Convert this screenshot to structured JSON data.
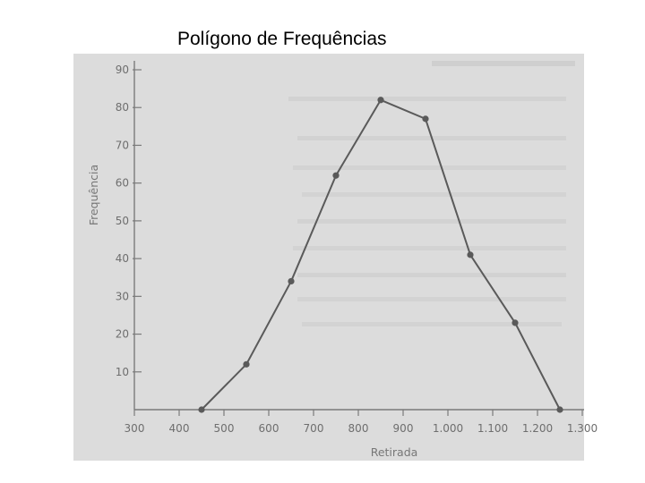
{
  "slide": {
    "title": "Polígono de Frequências"
  },
  "chart_data": {
    "type": "line",
    "title": "",
    "xlabel": "Retirada",
    "ylabel": "Frequência",
    "x": [
      450,
      550,
      650,
      750,
      850,
      950,
      1050,
      1150,
      1250
    ],
    "series": [
      {
        "values": [
          0,
          12,
          34,
          62,
          82,
          77,
          41,
          23,
          0
        ]
      }
    ],
    "xlim": [
      300,
      1300
    ],
    "ylim": [
      0,
      90
    ],
    "x_ticks": [
      300,
      400,
      500,
      600,
      700,
      800,
      900,
      1000,
      1100,
      1200,
      1300
    ],
    "x_tick_labels": [
      "300",
      "400",
      "500",
      "600",
      "700",
      "800",
      "900",
      "1.000",
      "1.100",
      "1.200",
      "1.300"
    ],
    "y_ticks": [
      10,
      20,
      30,
      40,
      50,
      60,
      70,
      80,
      90
    ],
    "y_tick_labels": [
      "10",
      "20",
      "30",
      "40",
      "50",
      "60",
      "70",
      "80",
      "90"
    ],
    "grid": false,
    "legend": "none",
    "colors": {
      "line": "#5a5a5a",
      "marker": "#5a5a5a",
      "axis": "#7a7a7a",
      "background": "#dcdcdc"
    }
  }
}
